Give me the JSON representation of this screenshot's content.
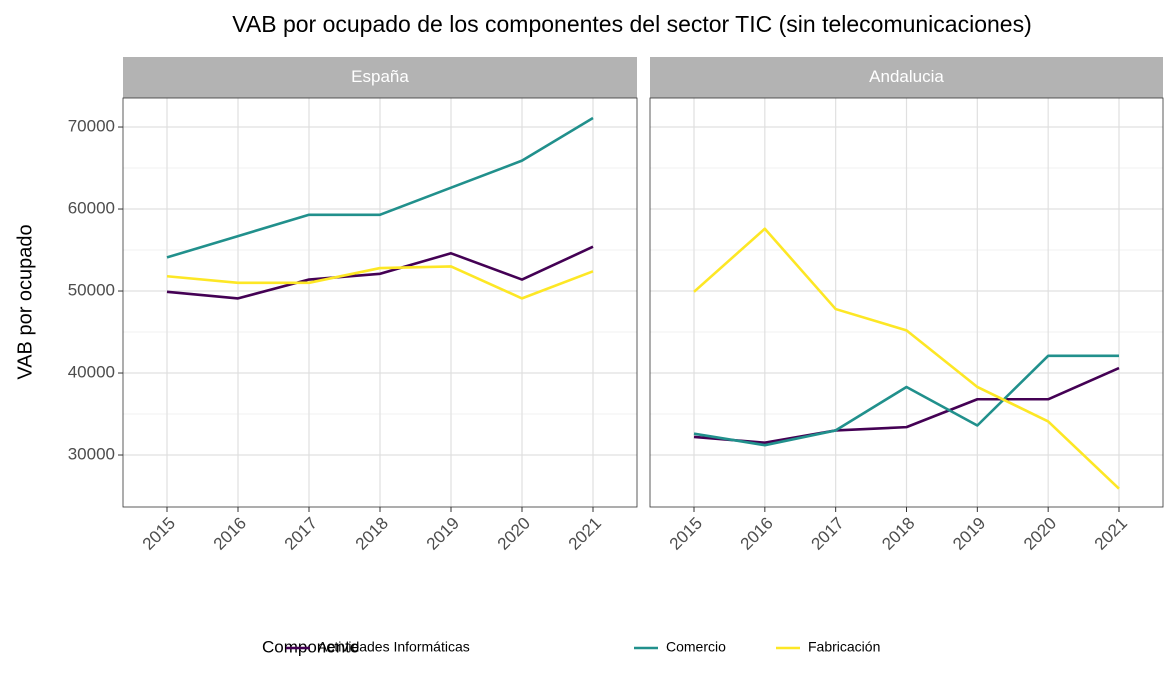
{
  "title": "VAB por ocupado de los componentes del sector TIC (sin telecomunicaciones)",
  "y_label": "VAB por ocupado",
  "legend_title": "Componente",
  "legend_position": "bottom",
  "chart_data": [
    {
      "type": "line",
      "title": "España",
      "categories": [
        "2015",
        "2016",
        "2017",
        "2018",
        "2019",
        "2020",
        "2021"
      ],
      "series": [
        {
          "name": "Actividades Informáticas",
          "color": "#440154",
          "values": [
            49900,
            49100,
            51400,
            52100,
            54600,
            51400,
            55400
          ]
        },
        {
          "name": "Comercio",
          "color": "#21908c",
          "values": [
            54100,
            56700,
            59300,
            59300,
            62600,
            65900,
            71100
          ]
        },
        {
          "name": "Fabricación",
          "color": "#fde725",
          "values": [
            51800,
            51000,
            51000,
            52800,
            53000,
            49100,
            52400
          ]
        }
      ],
      "ylim": [
        23660,
        73540
      ],
      "yticks": [
        30000,
        40000,
        50000,
        60000,
        70000
      ],
      "grid": true
    },
    {
      "type": "line",
      "title": "Andalucia",
      "categories": [
        "2015",
        "2016",
        "2017",
        "2018",
        "2019",
        "2020",
        "2021"
      ],
      "series": [
        {
          "name": "Actividades Informáticas",
          "color": "#440154",
          "values": [
            32200,
            31500,
            33000,
            33400,
            36800,
            36800,
            40600
          ]
        },
        {
          "name": "Comercio",
          "color": "#21908c",
          "values": [
            32600,
            31200,
            33000,
            38300,
            33600,
            42100,
            42100
          ]
        },
        {
          "name": "Fabricación",
          "color": "#fde725",
          "values": [
            49900,
            57600,
            47800,
            45200,
            38300,
            34100,
            25900
          ]
        }
      ],
      "ylim": [
        23660,
        73540
      ],
      "yticks": [
        30000,
        40000,
        50000,
        60000,
        70000
      ],
      "grid": true
    }
  ]
}
